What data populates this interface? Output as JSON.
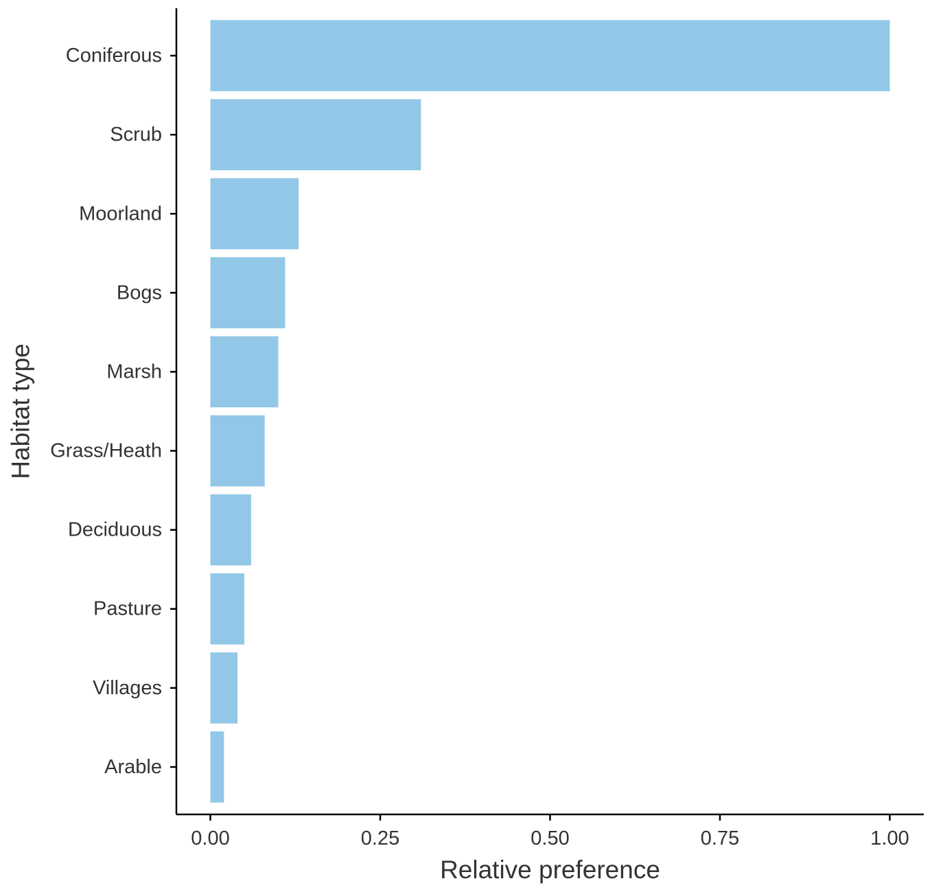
{
  "chart_data": {
    "type": "bar",
    "orientation": "horizontal",
    "categories": [
      "Coniferous",
      "Scrub",
      "Moorland",
      "Bogs",
      "Marsh",
      "Grass/Heath",
      "Deciduous",
      "Pasture",
      "Villages",
      "Arable"
    ],
    "values": [
      1.0,
      0.31,
      0.13,
      0.11,
      0.1,
      0.08,
      0.06,
      0.05,
      0.04,
      0.02
    ],
    "xlabel": "Relative preference",
    "ylabel": "Habitat type",
    "xlim": [
      -0.05,
      1.05
    ],
    "xticks": [
      0,
      0.25,
      0.5,
      0.75,
      1.0
    ],
    "xtick_labels": [
      "0.00",
      "0.25",
      "0.50",
      "0.75",
      "1.00"
    ],
    "bar_color": "#93c7e7",
    "grid": false,
    "legend": "none"
  }
}
